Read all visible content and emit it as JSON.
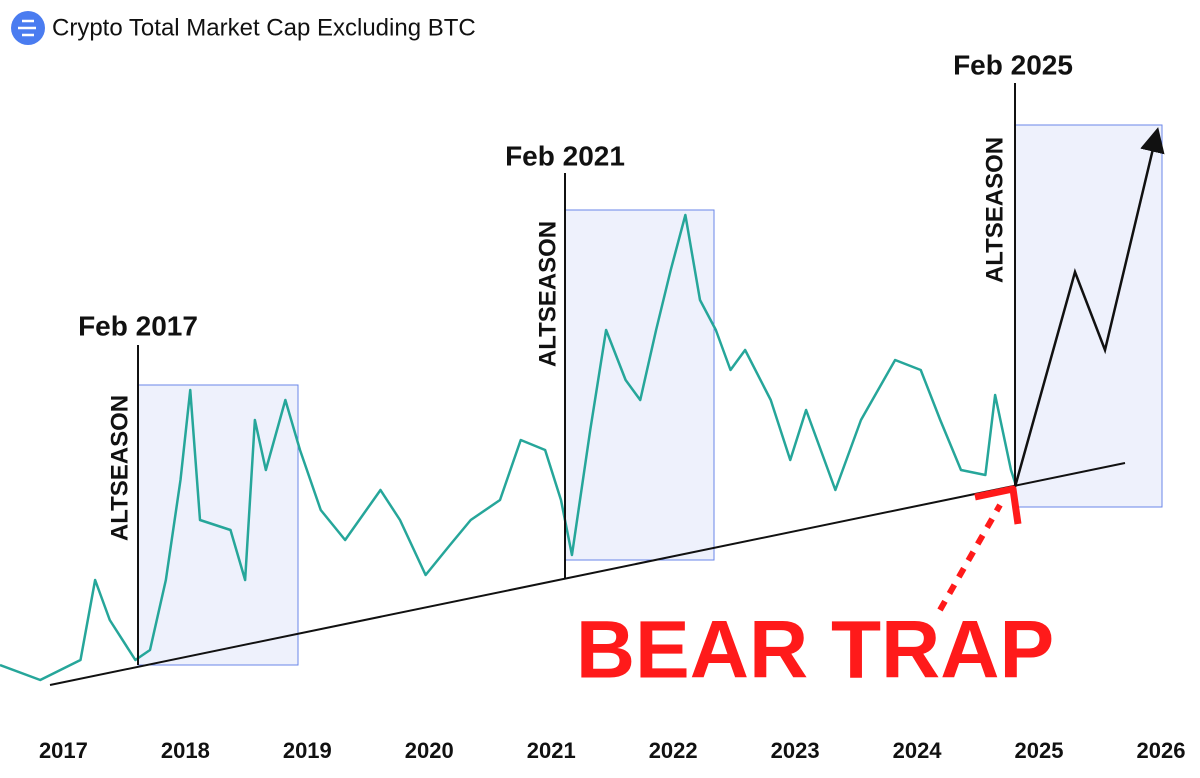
{
  "chart_data": {
    "type": "line",
    "title": "Crypto Total Market Cap Excluding BTC",
    "annotations": [
      "Feb 2017",
      "Feb 2021",
      "Feb 2025",
      "ALTSEASON",
      "ALTSEASON",
      "ALTSEASON",
      "BEAR TRAP"
    ],
    "x": [
      2016.48,
      2016.81,
      2017.14,
      2017.26,
      2017.38,
      2017.59,
      2017.71,
      2017.84,
      2017.96,
      2018.04,
      2018.12,
      2018.37,
      2018.49,
      2018.57,
      2018.66,
      2018.82,
      2018.94,
      2019.11,
      2019.31,
      2019.6,
      2019.76,
      2019.97,
      2020.17,
      2020.34,
      2020.58,
      2020.75,
      2020.95,
      2021.08,
      2021.17,
      2021.32,
      2021.45,
      2021.61,
      2021.73,
      2021.86,
      2021.98,
      2022.1,
      2022.22,
      2022.35,
      2022.47,
      2022.59,
      2022.8,
      2022.96,
      2023.09,
      2023.33,
      2023.54,
      2023.82,
      2024.03,
      2024.19,
      2024.36,
      2024.56,
      2024.64,
      2024.77,
      2024.81
    ],
    "values": [
      35,
      20,
      40,
      120,
      80,
      40,
      50,
      120,
      220,
      310,
      180,
      170,
      120,
      280,
      230,
      300,
      250,
      190,
      160,
      210,
      180,
      125,
      155,
      180,
      200,
      260,
      250,
      200,
      145,
      270,
      370,
      320,
      300,
      370,
      430,
      485,
      400,
      370,
      330,
      350,
      300,
      240,
      290,
      210,
      280,
      340,
      330,
      280,
      230,
      225,
      305,
      230,
      215
    ],
    "color": "#26a69a",
    "xlim": [
      2016.48,
      2026.32
    ],
    "ylim": [
      0,
      600
    ],
    "xticks": [
      2017,
      2018,
      2019,
      2020,
      2021,
      2022,
      2023,
      2024,
      2025,
      2026
    ]
  }
}
